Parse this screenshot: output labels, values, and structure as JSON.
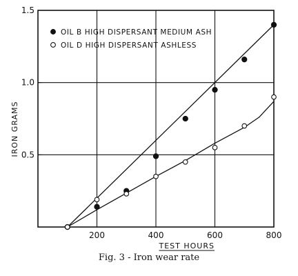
{
  "chart_data": {
    "type": "scatter",
    "title": "",
    "xlabel": "TEST HOURS",
    "ylabel": "IRON GRAMS",
    "xlim": [
      0,
      800
    ],
    "ylim": [
      0,
      1.5
    ],
    "x_ticks": [
      200,
      400,
      600,
      800
    ],
    "x_tick_labels": [
      "200",
      "400",
      "600",
      "800"
    ],
    "y_ticks": [
      0.5,
      1.0,
      1.5
    ],
    "y_tick_labels": [
      "0.5",
      "1.0",
      "1.5"
    ],
    "grid": "major gridlines at x = 200, 400, 600 and y = 0.5, 1.0",
    "legend_position": "top-left",
    "series": [
      {
        "name": "OIL B HIGH DISPERSANT MEDIUM ASH",
        "marker": "filled-circle",
        "points": [
          [
            100,
            0.0
          ],
          [
            200,
            0.14
          ],
          [
            300,
            0.25
          ],
          [
            400,
            0.49
          ],
          [
            500,
            0.75
          ],
          [
            600,
            0.95
          ],
          [
            700,
            1.16
          ],
          [
            800,
            1.4
          ]
        ],
        "fit_line": [
          [
            100,
            0.0
          ],
          [
            800,
            1.4
          ]
        ]
      },
      {
        "name": "OIL D HIGH DISPERSANT ASHLESS",
        "marker": "open-circle",
        "points": [
          [
            100,
            0.0
          ],
          [
            200,
            0.19
          ],
          [
            300,
            0.23
          ],
          [
            400,
            0.35
          ],
          [
            500,
            0.45
          ],
          [
            600,
            0.55
          ],
          [
            700,
            0.7
          ],
          [
            800,
            0.9
          ]
        ],
        "fit_line": [
          [
            100,
            0.0
          ],
          [
            200,
            0.12
          ],
          [
            300,
            0.235
          ],
          [
            400,
            0.35
          ],
          [
            500,
            0.46
          ],
          [
            600,
            0.58
          ],
          [
            700,
            0.69
          ],
          [
            750,
            0.76
          ],
          [
            800,
            0.87
          ]
        ]
      }
    ]
  },
  "caption": "Fig. 3 - Iron wear rate",
  "colors": {
    "ink": "#111111",
    "background": "#ffffff"
  }
}
